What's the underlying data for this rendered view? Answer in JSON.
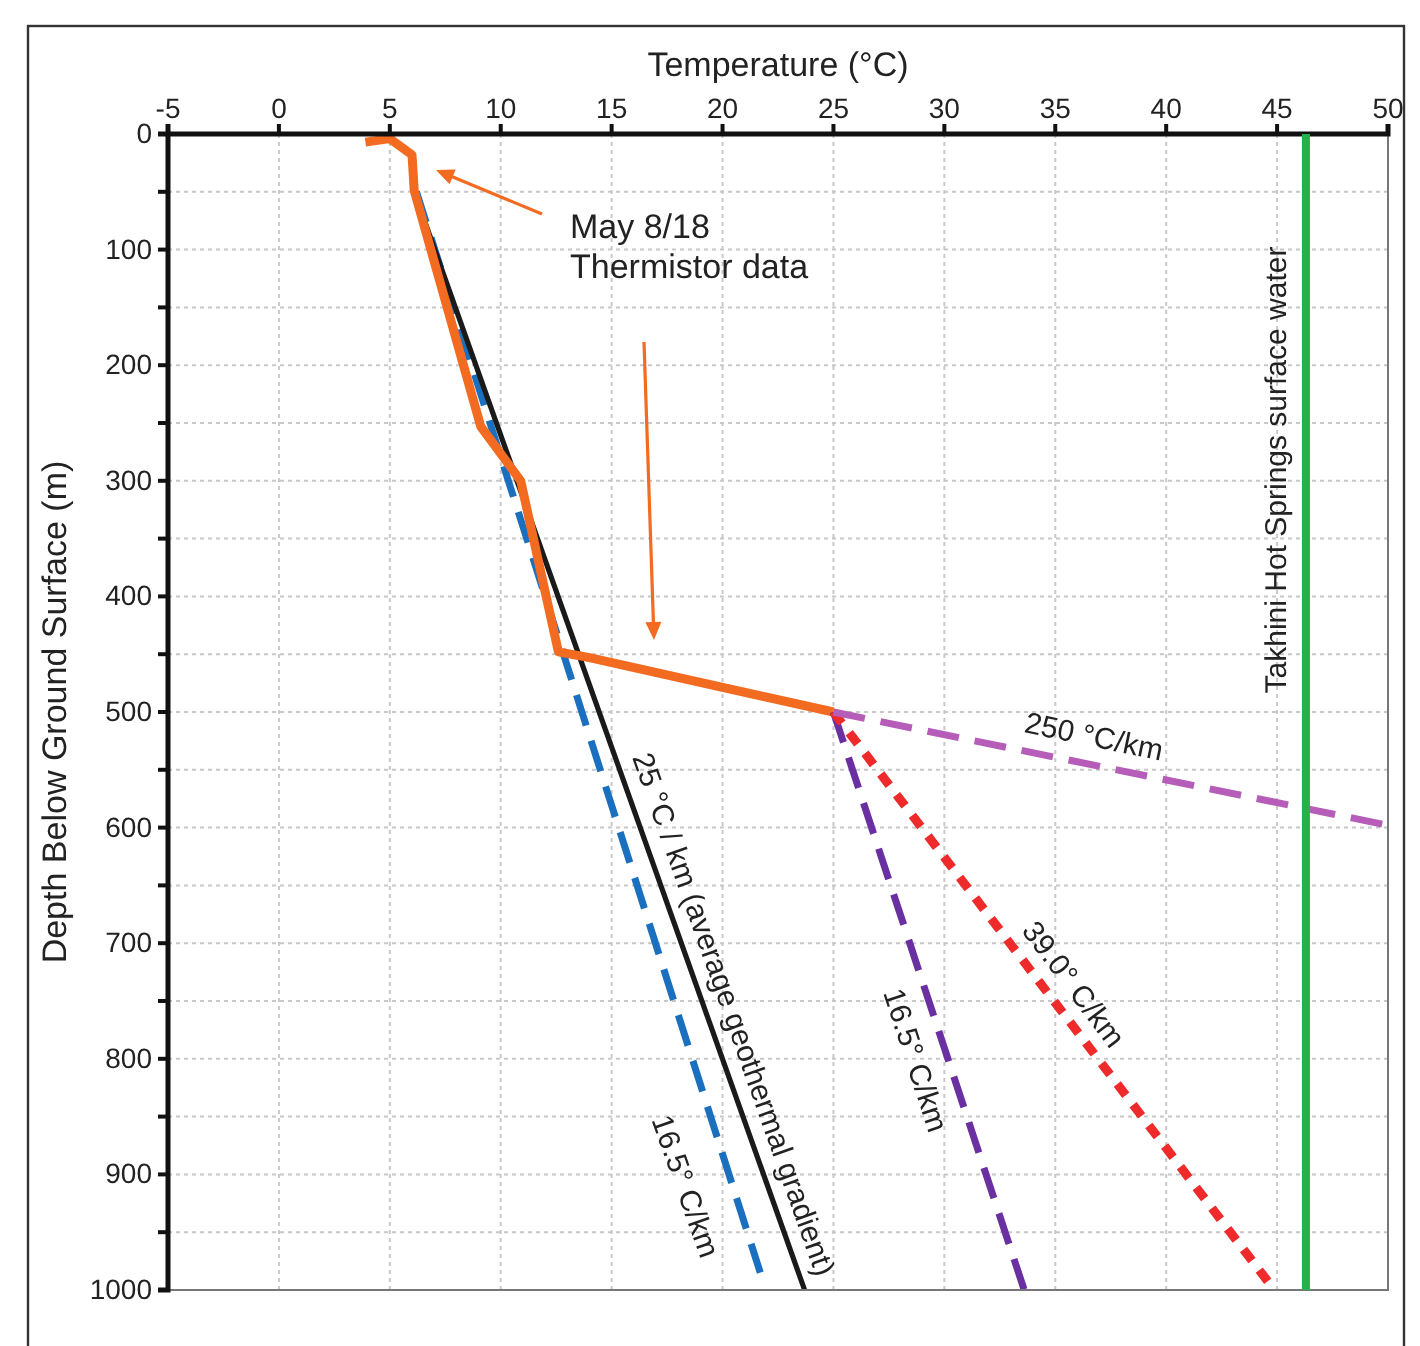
{
  "chart_data": {
    "type": "line",
    "xlabel": "Temperature (°C)",
    "ylabel": "Depth Below Ground Surface (m)",
    "xlim": [
      -5,
      50
    ],
    "xticks": [
      -5,
      0,
      5,
      10,
      15,
      20,
      25,
      30,
      35,
      40,
      45,
      50
    ],
    "ylim": [
      1000,
      0
    ],
    "yticks": [
      0,
      {
        "value": 50,
        "label": null
      },
      100,
      {
        "value": 150,
        "label": null
      },
      200,
      {
        "value": 250,
        "label": null
      },
      300,
      {
        "value": 350,
        "label": null
      },
      400,
      {
        "value": 450,
        "label": null
      },
      500,
      {
        "value": 550,
        "label": null
      },
      600,
      {
        "value": 650,
        "label": null
      },
      700,
      {
        "value": 750,
        "label": null
      },
      800,
      {
        "value": 850,
        "label": null
      },
      900,
      {
        "value": 950,
        "label": null
      },
      1000
    ],
    "grid": true,
    "marker": "none",
    "series": [
      {
        "color": "#1a6fbf",
        "line_style": "dashed",
        "x": [
          6.2,
          21.7
        ],
        "values": [
          50,
          985
        ]
      },
      {
        "color": "#1a1a1a",
        "line_style": "solid",
        "x": [
          6.1,
          23.7
        ],
        "values": [
          50,
          1000
        ]
      },
      {
        "color": "#f26b21",
        "line_style": "solid",
        "x": [
          3.9,
          5.0,
          6.0,
          6.1,
          9.1,
          10.9,
          12.6,
          14.0,
          25.0
        ],
        "values": [
          7,
          4,
          18,
          49,
          253,
          300,
          448,
          453,
          500
        ]
      },
      {
        "color": "#6a2fa0",
        "line_style": "dashed",
        "x": [
          25.0,
          33.6
        ],
        "values": [
          500,
          1000
        ]
      },
      {
        "color": "#ee2a2a",
        "line_style": "dotted",
        "x": [
          25.0,
          44.6
        ],
        "values": [
          500,
          993
        ]
      },
      {
        "color": "#b65db9",
        "line_style": "dashed",
        "x": [
          25.0,
          50.0
        ],
        "values": [
          500,
          598
        ]
      }
    ],
    "ref_lines": [
      {
        "axis": "x",
        "value": 46.3,
        "label": "Takhini Hot Springs surface water",
        "color": "#22b24c"
      }
    ],
    "annotations": [
      "May 8/18\nThermistor data",
      "25 °C / km (average geothermal gradient)",
      "16.5° C/km",
      "16.5° C/km",
      "39.0° C/km",
      "250 °C/km"
    ]
  }
}
